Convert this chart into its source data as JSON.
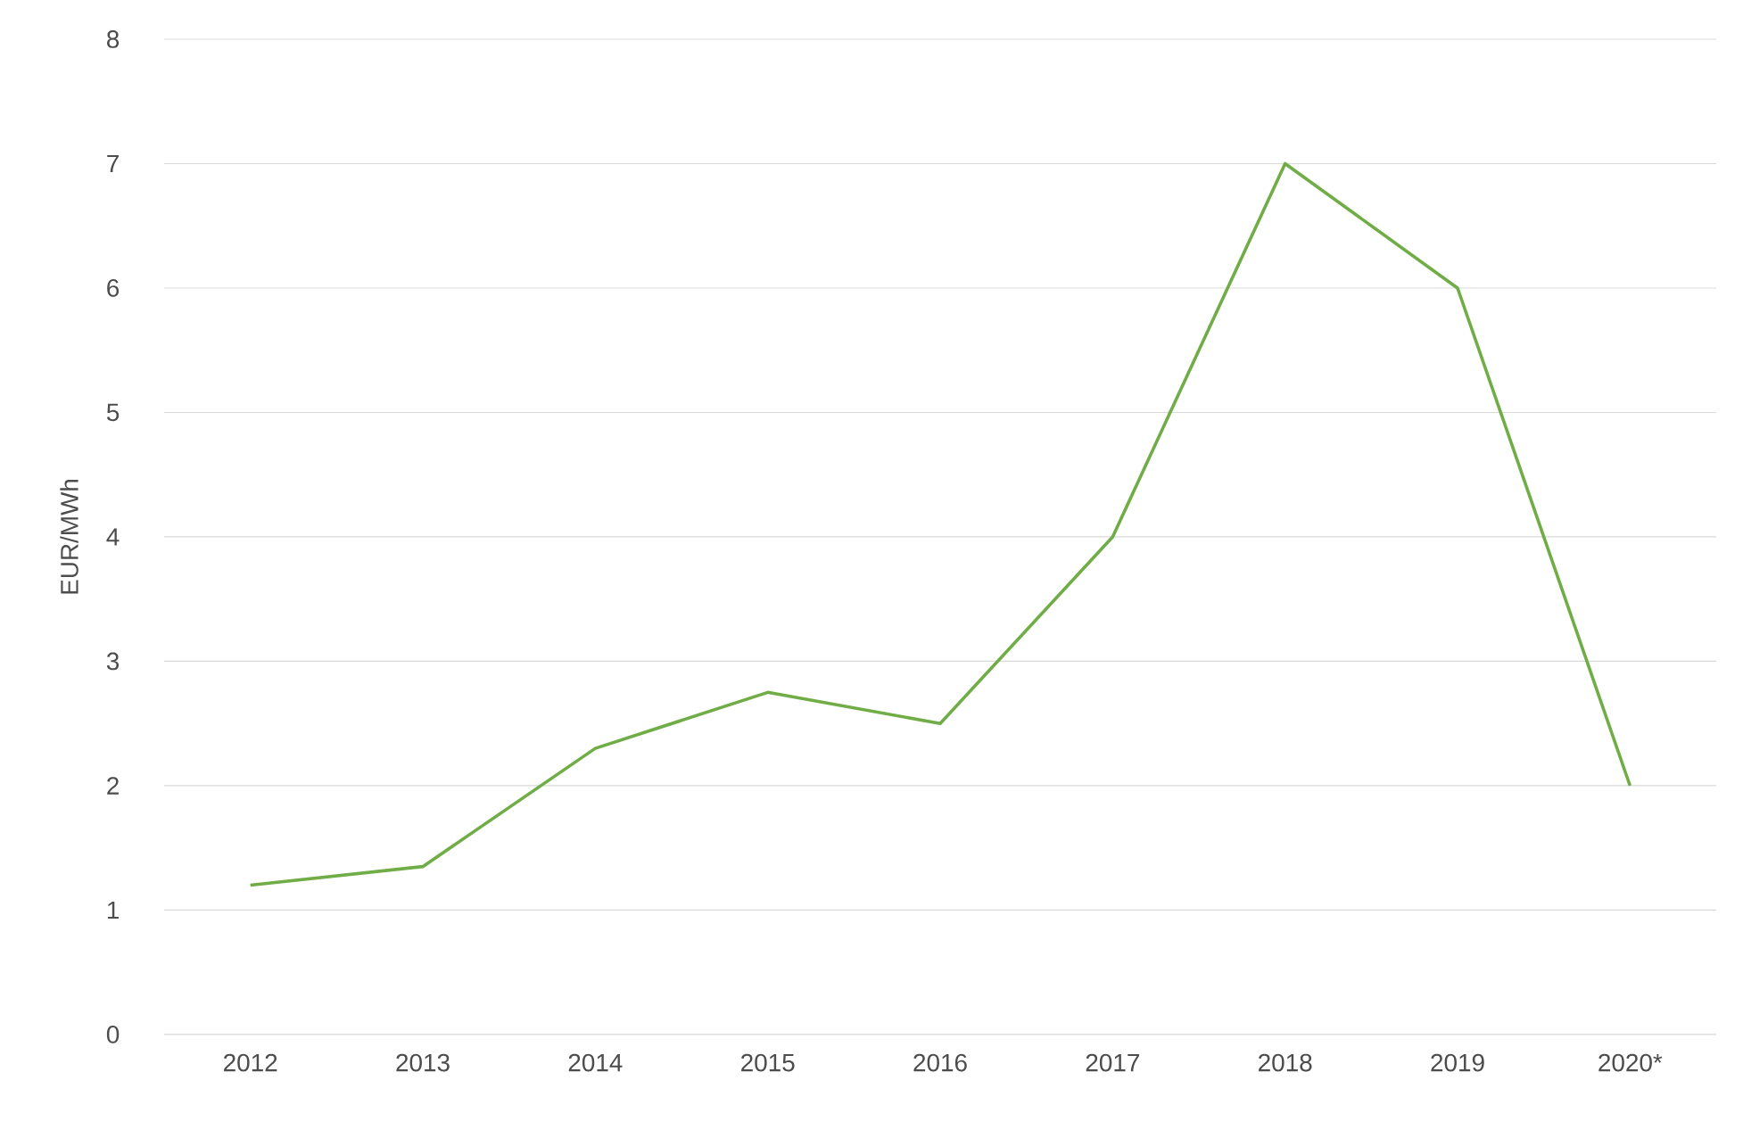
{
  "chart_data": {
    "type": "line",
    "ylabel": "EUR/MWh",
    "categories": [
      "2012",
      "2013",
      "2014",
      "2015",
      "2016",
      "2017",
      "2018",
      "2019",
      "2020*"
    ],
    "series": [
      {
        "color": "#70ad47",
        "values": [
          1.2,
          1.35,
          2.3,
          2.75,
          2.5,
          4.0,
          7.0,
          6.0,
          2.0
        ]
      }
    ],
    "ylim": [
      0,
      8
    ],
    "yticks": [
      0,
      1,
      2,
      3,
      4,
      5,
      6,
      7,
      8
    ],
    "grid": "y",
    "marker": "none"
  }
}
